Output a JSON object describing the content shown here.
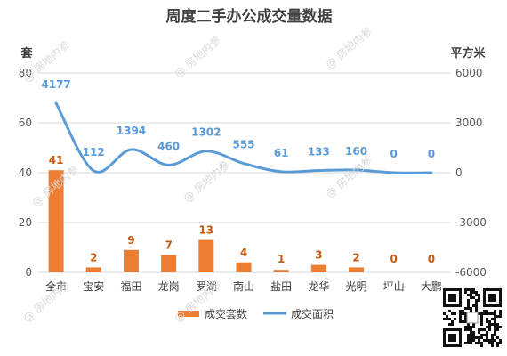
{
  "watermark": "@ 房地内参",
  "chart_data": {
    "type": "bar+line",
    "title": "周度二手办公成交量数据",
    "categories": [
      "全市",
      "宝安",
      "福田",
      "龙岗",
      "罗湖",
      "南山",
      "盐田",
      "龙华",
      "光明",
      "坪山",
      "大鹏"
    ],
    "y_left": {
      "label": "套",
      "min": 0,
      "max": 80,
      "ticks": [
        0,
        20,
        40,
        60,
        80
      ]
    },
    "y_right": {
      "label": "平方米",
      "min": -6000,
      "max": 6000,
      "ticks": [
        "-6000",
        "-3000",
        "0",
        "3000",
        "6000"
      ]
    },
    "series": [
      {
        "name": "成交套数",
        "type": "bar",
        "axis": "left",
        "color": "#ED7D31",
        "label_color": "#C55A11",
        "values": [
          41,
          2,
          9,
          7,
          13,
          4,
          1,
          3,
          2,
          0,
          0
        ]
      },
      {
        "name": "成交面积",
        "type": "line",
        "axis": "right",
        "color": "#5B9BD5",
        "label_color": "#5B9BD5",
        "smooth": true,
        "values": [
          4177,
          112,
          1394,
          460,
          1302,
          555,
          61,
          133,
          160,
          0,
          0
        ]
      }
    ],
    "legend": "bottom",
    "grid": true
  }
}
